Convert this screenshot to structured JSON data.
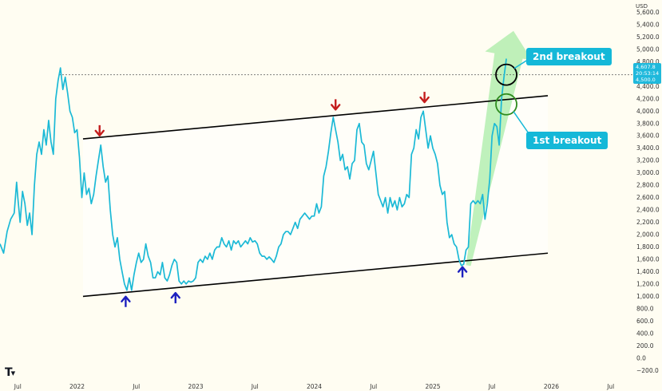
{
  "chart_data": {
    "type": "line",
    "currency": "USD",
    "y_ticks": [
      -200,
      0,
      200,
      400,
      600,
      800,
      1000,
      1200,
      1400,
      1600,
      1800,
      2000,
      2200,
      2400,
      2600,
      2800,
      3000,
      3200,
      3400,
      3600,
      3800,
      4000,
      4200,
      4400,
      4600,
      4800,
      5000,
      5200,
      5400,
      5600
    ],
    "y_tick_labels": [
      "−200.0",
      "0.0",
      "200.0",
      "400.0",
      "600.0",
      "800.0",
      "1,000.0",
      "1,200.0",
      "1,400.0",
      "1,600.0",
      "1,800.0",
      "2,000.0",
      "2,200.0",
      "2,400.0",
      "2,600.0",
      "2,800.0",
      "3,000.0",
      "3,200.0",
      "3,400.0",
      "3,600.0",
      "3,800.0",
      "4,000.0",
      "4,200.0",
      "4,400.0",
      "4,600.0",
      "4,800.0",
      "5,000.0",
      "5,200.0",
      "5,400.0",
      "5,600.0"
    ],
    "ylim": [
      -300,
      5800
    ],
    "xlim": [
      2021.35,
      2026.65
    ],
    "x_ticks": [
      {
        "t": 2021.5,
        "label": "Jul"
      },
      {
        "t": 2022.0,
        "label": "2022"
      },
      {
        "t": 2022.5,
        "label": "Jul"
      },
      {
        "t": 2023.0,
        "label": "2023"
      },
      {
        "t": 2023.5,
        "label": "Jul"
      },
      {
        "t": 2024.0,
        "label": "2024"
      },
      {
        "t": 2024.5,
        "label": "Jul"
      },
      {
        "t": 2025.0,
        "label": "2025"
      },
      {
        "t": 2025.5,
        "label": "Jul"
      },
      {
        "t": 2026.0,
        "label": "2026"
      },
      {
        "t": 2026.5,
        "label": "Jul"
      }
    ],
    "series": [
      {
        "color": "#1bb9d6",
        "points": [
          [
            2021.35,
            1850
          ],
          [
            2021.38,
            1700
          ],
          [
            2021.41,
            2050
          ],
          [
            2021.44,
            2250
          ],
          [
            2021.47,
            2350
          ],
          [
            2021.49,
            2850
          ],
          [
            2021.5,
            2600
          ],
          [
            2021.52,
            2200
          ],
          [
            2021.54,
            2700
          ],
          [
            2021.56,
            2500
          ],
          [
            2021.58,
            2150
          ],
          [
            2021.6,
            2350
          ],
          [
            2021.62,
            2000
          ],
          [
            2021.64,
            2800
          ],
          [
            2021.66,
            3300
          ],
          [
            2021.68,
            3500
          ],
          [
            2021.7,
            3300
          ],
          [
            2021.72,
            3700
          ],
          [
            2021.74,
            3450
          ],
          [
            2021.76,
            3850
          ],
          [
            2021.78,
            3500
          ],
          [
            2021.8,
            3300
          ],
          [
            2021.82,
            4200
          ],
          [
            2021.84,
            4500
          ],
          [
            2021.86,
            4700
          ],
          [
            2021.88,
            4350
          ],
          [
            2021.9,
            4550
          ],
          [
            2021.92,
            4300
          ],
          [
            2021.94,
            4000
          ],
          [
            2021.96,
            3900
          ],
          [
            2021.98,
            3650
          ],
          [
            2022.0,
            3700
          ],
          [
            2022.02,
            3250
          ],
          [
            2022.04,
            2600
          ],
          [
            2022.06,
            3000
          ],
          [
            2022.08,
            2650
          ],
          [
            2022.1,
            2750
          ],
          [
            2022.12,
            2500
          ],
          [
            2022.14,
            2650
          ],
          [
            2022.16,
            2950
          ],
          [
            2022.18,
            3200
          ],
          [
            2022.2,
            3450
          ],
          [
            2022.22,
            3100
          ],
          [
            2022.24,
            2850
          ],
          [
            2022.26,
            2950
          ],
          [
            2022.28,
            2400
          ],
          [
            2022.3,
            2000
          ],
          [
            2022.32,
            1800
          ],
          [
            2022.34,
            1950
          ],
          [
            2022.36,
            1600
          ],
          [
            2022.38,
            1400
          ],
          [
            2022.4,
            1200
          ],
          [
            2022.42,
            1100
          ],
          [
            2022.44,
            1300
          ],
          [
            2022.46,
            1100
          ],
          [
            2022.48,
            1350
          ],
          [
            2022.5,
            1550
          ],
          [
            2022.52,
            1700
          ],
          [
            2022.54,
            1550
          ],
          [
            2022.56,
            1600
          ],
          [
            2022.58,
            1850
          ],
          [
            2022.6,
            1650
          ],
          [
            2022.62,
            1550
          ],
          [
            2022.64,
            1300
          ],
          [
            2022.66,
            1300
          ],
          [
            2022.68,
            1400
          ],
          [
            2022.7,
            1350
          ],
          [
            2022.72,
            1550
          ],
          [
            2022.74,
            1300
          ],
          [
            2022.76,
            1250
          ],
          [
            2022.78,
            1350
          ],
          [
            2022.8,
            1500
          ],
          [
            2022.82,
            1600
          ],
          [
            2022.84,
            1550
          ],
          [
            2022.86,
            1250
          ],
          [
            2022.88,
            1200
          ],
          [
            2022.9,
            1250
          ],
          [
            2022.92,
            1200
          ],
          [
            2022.94,
            1250
          ],
          [
            2022.96,
            1230
          ],
          [
            2022.98,
            1250
          ],
          [
            2023.0,
            1300
          ],
          [
            2023.02,
            1550
          ],
          [
            2023.04,
            1600
          ],
          [
            2023.06,
            1550
          ],
          [
            2023.08,
            1650
          ],
          [
            2023.1,
            1600
          ],
          [
            2023.12,
            1700
          ],
          [
            2023.14,
            1600
          ],
          [
            2023.16,
            1750
          ],
          [
            2023.18,
            1800
          ],
          [
            2023.2,
            1800
          ],
          [
            2023.22,
            1950
          ],
          [
            2023.24,
            1850
          ],
          [
            2023.26,
            1800
          ],
          [
            2023.28,
            1900
          ],
          [
            2023.3,
            1750
          ],
          [
            2023.32,
            1900
          ],
          [
            2023.34,
            1850
          ],
          [
            2023.36,
            1900
          ],
          [
            2023.38,
            1800
          ],
          [
            2023.4,
            1850
          ],
          [
            2023.42,
            1900
          ],
          [
            2023.44,
            1850
          ],
          [
            2023.46,
            1950
          ],
          [
            2023.48,
            1880
          ],
          [
            2023.5,
            1900
          ],
          [
            2023.52,
            1850
          ],
          [
            2023.54,
            1700
          ],
          [
            2023.56,
            1650
          ],
          [
            2023.58,
            1650
          ],
          [
            2023.6,
            1600
          ],
          [
            2023.62,
            1640
          ],
          [
            2023.64,
            1600
          ],
          [
            2023.66,
            1550
          ],
          [
            2023.68,
            1650
          ],
          [
            2023.7,
            1800
          ],
          [
            2023.72,
            1850
          ],
          [
            2023.74,
            2000
          ],
          [
            2023.76,
            2050
          ],
          [
            2023.78,
            2050
          ],
          [
            2023.8,
            2000
          ],
          [
            2023.82,
            2100
          ],
          [
            2023.84,
            2200
          ],
          [
            2023.86,
            2100
          ],
          [
            2023.88,
            2250
          ],
          [
            2023.9,
            2300
          ],
          [
            2023.92,
            2350
          ],
          [
            2023.94,
            2300
          ],
          [
            2023.96,
            2250
          ],
          [
            2023.98,
            2300
          ],
          [
            2024.0,
            2300
          ],
          [
            2024.02,
            2500
          ],
          [
            2024.04,
            2350
          ],
          [
            2024.06,
            2450
          ],
          [
            2024.08,
            2950
          ],
          [
            2024.1,
            3100
          ],
          [
            2024.12,
            3350
          ],
          [
            2024.14,
            3650
          ],
          [
            2024.16,
            3900
          ],
          [
            2024.18,
            3700
          ],
          [
            2024.2,
            3500
          ],
          [
            2024.22,
            3200
          ],
          [
            2024.24,
            3300
          ],
          [
            2024.26,
            3050
          ],
          [
            2024.28,
            3100
          ],
          [
            2024.3,
            2900
          ],
          [
            2024.32,
            3150
          ],
          [
            2024.34,
            3200
          ],
          [
            2024.36,
            3700
          ],
          [
            2024.38,
            3800
          ],
          [
            2024.4,
            3500
          ],
          [
            2024.42,
            3450
          ],
          [
            2024.44,
            3150
          ],
          [
            2024.46,
            3050
          ],
          [
            2024.48,
            3200
          ],
          [
            2024.5,
            3350
          ],
          [
            2024.52,
            3000
          ],
          [
            2024.54,
            2650
          ],
          [
            2024.56,
            2550
          ],
          [
            2024.58,
            2450
          ],
          [
            2024.6,
            2600
          ],
          [
            2024.62,
            2350
          ],
          [
            2024.64,
            2600
          ],
          [
            2024.66,
            2450
          ],
          [
            2024.68,
            2550
          ],
          [
            2024.7,
            2400
          ],
          [
            2024.72,
            2600
          ],
          [
            2024.74,
            2450
          ],
          [
            2024.76,
            2500
          ],
          [
            2024.78,
            2650
          ],
          [
            2024.8,
            2600
          ],
          [
            2024.82,
            3300
          ],
          [
            2024.84,
            3400
          ],
          [
            2024.86,
            3700
          ],
          [
            2024.88,
            3550
          ],
          [
            2024.9,
            3900
          ],
          [
            2024.92,
            4000
          ],
          [
            2024.94,
            3700
          ],
          [
            2024.96,
            3400
          ],
          [
            2024.98,
            3600
          ],
          [
            2025.0,
            3400
          ],
          [
            2025.02,
            3300
          ],
          [
            2025.04,
            3150
          ],
          [
            2025.06,
            2800
          ],
          [
            2025.08,
            2650
          ],
          [
            2025.1,
            2700
          ],
          [
            2025.12,
            2200
          ],
          [
            2025.14,
            1950
          ],
          [
            2025.16,
            2000
          ],
          [
            2025.18,
            1850
          ],
          [
            2025.2,
            1800
          ],
          [
            2025.22,
            1600
          ],
          [
            2025.24,
            1500
          ],
          [
            2025.26,
            1520
          ],
          [
            2025.28,
            1750
          ],
          [
            2025.3,
            1800
          ],
          [
            2025.32,
            2500
          ],
          [
            2025.34,
            2550
          ],
          [
            2025.36,
            2500
          ],
          [
            2025.38,
            2550
          ],
          [
            2025.4,
            2500
          ],
          [
            2025.42,
            2650
          ],
          [
            2025.44,
            2250
          ],
          [
            2025.46,
            2500
          ],
          [
            2025.48,
            2900
          ],
          [
            2025.5,
            3600
          ],
          [
            2025.52,
            3800
          ],
          [
            2025.54,
            3750
          ],
          [
            2025.56,
            3450
          ],
          [
            2025.58,
            4200
          ],
          [
            2025.6,
            4550
          ],
          [
            2025.62,
            4850
          ]
        ]
      }
    ],
    "channel": {
      "upper": [
        [
          2022.05,
          3550
        ],
        [
          2025.97,
          4250
        ]
      ],
      "lower": [
        [
          2022.05,
          1000
        ],
        [
          2025.97,
          1700
        ]
      ]
    },
    "reference_line": {
      "value": 4590
    },
    "breakout_circles": [
      {
        "t": 2025.62,
        "value": 4590
      },
      {
        "t": 2025.62,
        "value": 4110
      }
    ],
    "down_arrows": [
      {
        "t": 2022.19,
        "value": 3540
      },
      {
        "t": 2024.18,
        "value": 3960
      },
      {
        "t": 2024.93,
        "value": 4080
      }
    ],
    "up_arrows": [
      {
        "t": 2022.41,
        "value": 1060
      },
      {
        "t": 2022.83,
        "value": 1120
      },
      {
        "t": 2025.25,
        "value": 1540
      }
    ],
    "annotations": [
      "2nd breakout",
      "1st breakout"
    ],
    "price_label": {
      "line1": "4,607.8",
      "line2": "20:53:14",
      "line3": "4,500.0"
    },
    "colors": {
      "line": "#1bb9d6",
      "channel": "#000000",
      "arrow_down": "#c41d1d",
      "arrow_up": "#1c1fbf",
      "callout": "#14b8d8",
      "trend_arrow": "#8ae68a"
    }
  }
}
